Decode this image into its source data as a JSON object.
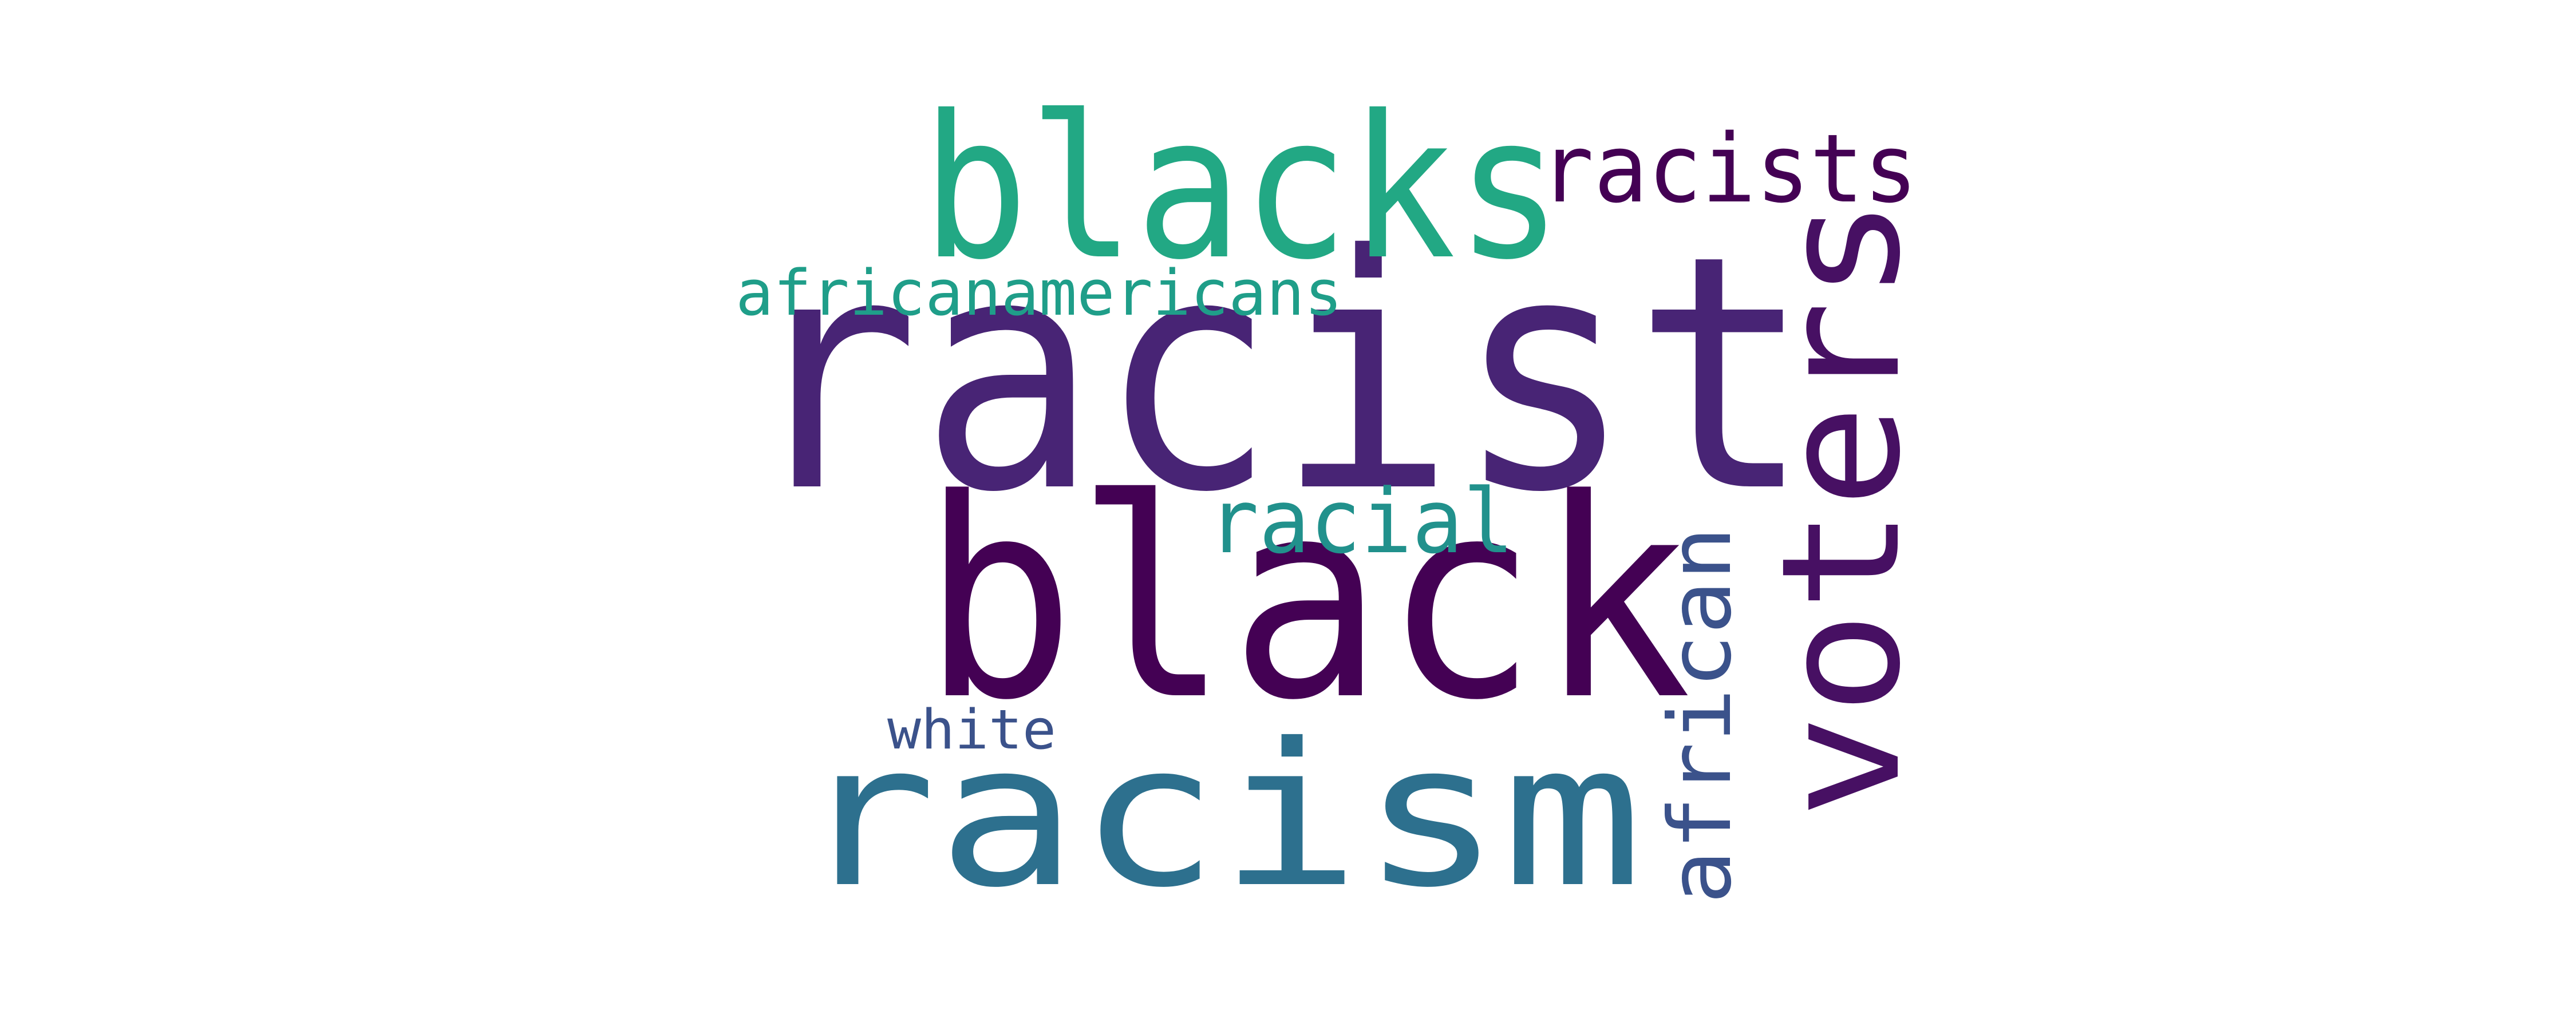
{
  "words": [
    {
      "id": "racist",
      "text": "racist",
      "color": "#482475"
    },
    {
      "id": "black",
      "text": "black",
      "color": "#440154"
    },
    {
      "id": "racism",
      "text": "racism",
      "color": "#2d708e"
    },
    {
      "id": "blacks",
      "text": "blacks",
      "color": "#22a884"
    },
    {
      "id": "voters",
      "text": "voters",
      "color": "#471063"
    },
    {
      "id": "racists",
      "text": "racists",
      "color": "#440154"
    },
    {
      "id": "african",
      "text": "african",
      "color": "#3b528b"
    },
    {
      "id": "racial",
      "text": "racial",
      "color": "#21918c"
    },
    {
      "id": "africanamericans",
      "text": "africanamericans",
      "color": "#1f9e89"
    },
    {
      "id": "white",
      "text": "white",
      "color": "#3b528b"
    }
  ]
}
